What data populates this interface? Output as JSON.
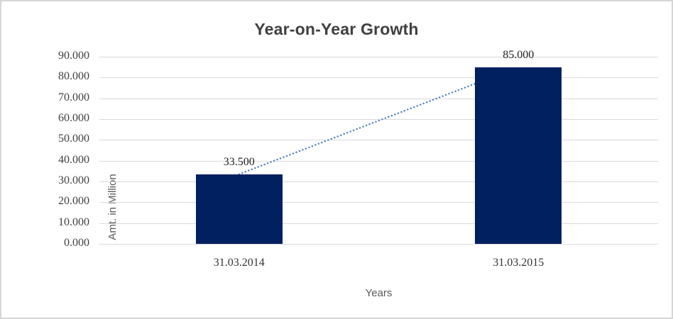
{
  "chart_data": {
    "type": "bar",
    "title": "Year-on-Year Growth",
    "xlabel": "Years",
    "ylabel": "Amt. in Million",
    "categories": [
      "31.03.2014",
      "31.03.2015"
    ],
    "values": [
      33.5,
      85.0
    ],
    "value_labels": [
      "33.500",
      "85.000"
    ],
    "ylim": [
      0,
      90
    ],
    "yticks": [
      0,
      10,
      20,
      30,
      40,
      50,
      60,
      70,
      80,
      90
    ],
    "ytick_labels": [
      "0.000",
      "10.000",
      "20.000",
      "30.000",
      "40.000",
      "50.000",
      "60.000",
      "70.000",
      "80.000",
      "90.000"
    ],
    "grid": true,
    "legend": false,
    "trendline": {
      "type": "linear",
      "style": "dotted"
    }
  },
  "colors": {
    "bar": "#002060",
    "trendline": "#4F81BD",
    "gridline": "#D9D9D9",
    "title": "#404040",
    "axis_title": "#595959",
    "tick_label": "#404040",
    "category_label": "#333333",
    "data_label": "#1F1F1F",
    "frame_border": "#D6D6D6",
    "background": "#FFFFFF"
  }
}
